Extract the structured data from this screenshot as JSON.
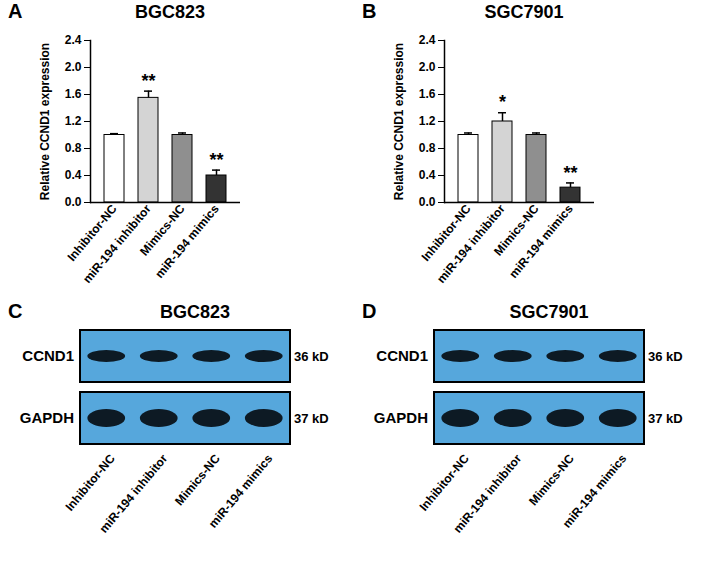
{
  "chart_data": [
    {
      "type": "bar",
      "panel": "A",
      "title": "BGC823",
      "categories": [
        "Inhibitor-NC",
        "miR-194 inhibitor",
        "Mimics-NC",
        "miR-194 mimics"
      ],
      "values": [
        1.0,
        1.55,
        1.0,
        0.4
      ],
      "errors": [
        0.02,
        0.1,
        0.03,
        0.08
      ],
      "colors": [
        "#ffffff",
        "#d4d4d4",
        "#8f8f8f",
        "#333333"
      ],
      "ylabel": "Relative CCND1 expression",
      "ylim": [
        0,
        2.4
      ],
      "yticks": [
        {
          "value": 0,
          "label": "0.0"
        },
        {
          "value": 0.4,
          "label": "0.4"
        },
        {
          "value": 0.8,
          "label": "0.8"
        },
        {
          "value": 1.2,
          "label": "1.2"
        },
        {
          "value": 1.6,
          "label": "1.6"
        },
        {
          "value": 2.0,
          "label": "2.0"
        },
        {
          "value": 2.4,
          "label": "2.4"
        }
      ],
      "annotations": [
        {
          "category": "miR-194 inhibitor",
          "text": "**"
        },
        {
          "category": "miR-194 mimics",
          "text": "**"
        }
      ],
      "grid": false
    },
    {
      "type": "bar",
      "panel": "B",
      "title": "SGC7901",
      "categories": [
        "Inhibitor-NC",
        "miR-194 inhibitor",
        "Mimics-NC",
        "miR-194 mimics"
      ],
      "values": [
        1.0,
        1.2,
        1.0,
        0.22
      ],
      "errors": [
        0.03,
        0.13,
        0.03,
        0.07
      ],
      "colors": [
        "#ffffff",
        "#d4d4d4",
        "#8f8f8f",
        "#333333"
      ],
      "ylabel": "Relative CCND1 expression",
      "ylim": [
        0,
        2.4
      ],
      "yticks": [
        {
          "value": 0,
          "label": "0.0"
        },
        {
          "value": 0.4,
          "label": "0.4"
        },
        {
          "value": 0.8,
          "label": "0.8"
        },
        {
          "value": 1.2,
          "label": "1.2"
        },
        {
          "value": 1.6,
          "label": "1.6"
        },
        {
          "value": 2.0,
          "label": "2.0"
        },
        {
          "value": 2.4,
          "label": "2.4"
        }
      ],
      "annotations": [
        {
          "category": "miR-194 inhibitor",
          "text": "*"
        },
        {
          "category": "miR-194 mimics",
          "text": "**"
        }
      ],
      "grid": false
    }
  ],
  "blots": [
    {
      "panel": "C",
      "title": "BGC823",
      "lanes": [
        "Inhibitor-NC",
        "miR-194 inhibitor",
        "Mimics-NC",
        "miR-194 mimics"
      ],
      "rows": [
        {
          "label": "CCND1",
          "size": "36 kD"
        },
        {
          "label": "GAPDH",
          "size": "37 kD"
        }
      ]
    },
    {
      "panel": "D",
      "title": "SGC7901",
      "lanes": [
        "Inhibitor-NC",
        "miR-194 inhibitor",
        "Mimics-NC",
        "miR-194 mimics"
      ],
      "rows": [
        {
          "label": "CCND1",
          "size": "36 kD"
        },
        {
          "label": "GAPDH",
          "size": "37 kD"
        }
      ]
    }
  ]
}
